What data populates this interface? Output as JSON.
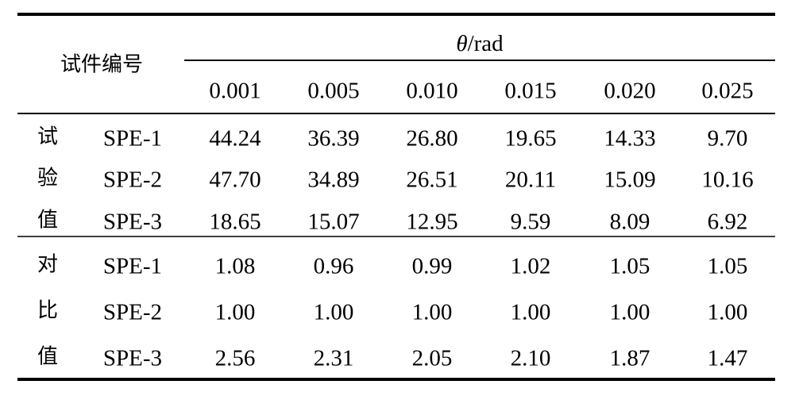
{
  "table": {
    "corner": "试件编号",
    "group_header": {
      "symbol": "θ",
      "unit": "/rad"
    },
    "columns": [
      "0.001",
      "0.005",
      "0.010",
      "0.015",
      "0.020",
      "0.025"
    ],
    "groups": [
      {
        "label_chars": [
          "试",
          "验",
          "值"
        ],
        "rows": [
          [
            "SPE-1",
            "44.24",
            "36.39",
            "26.80",
            "19.65",
            "14.33",
            "9.70"
          ],
          [
            "SPE-2",
            "47.70",
            "34.89",
            "26.51",
            "20.11",
            "15.09",
            "10.16"
          ],
          [
            "SPE-3",
            "18.65",
            "15.07",
            "12.95",
            "9.59",
            "8.09",
            "6.92"
          ]
        ]
      },
      {
        "label_chars": [
          "对",
          "比",
          "值"
        ],
        "rows": [
          [
            "SPE-1",
            "1.08",
            "0.96",
            "0.99",
            "1.02",
            "1.05",
            "1.05"
          ],
          [
            "SPE-2",
            "1.00",
            "1.00",
            "1.00",
            "1.00",
            "1.00",
            "1.00"
          ],
          [
            "SPE-3",
            "2.56",
            "2.31",
            "2.05",
            "2.10",
            "1.87",
            "1.47"
          ]
        ]
      }
    ]
  }
}
